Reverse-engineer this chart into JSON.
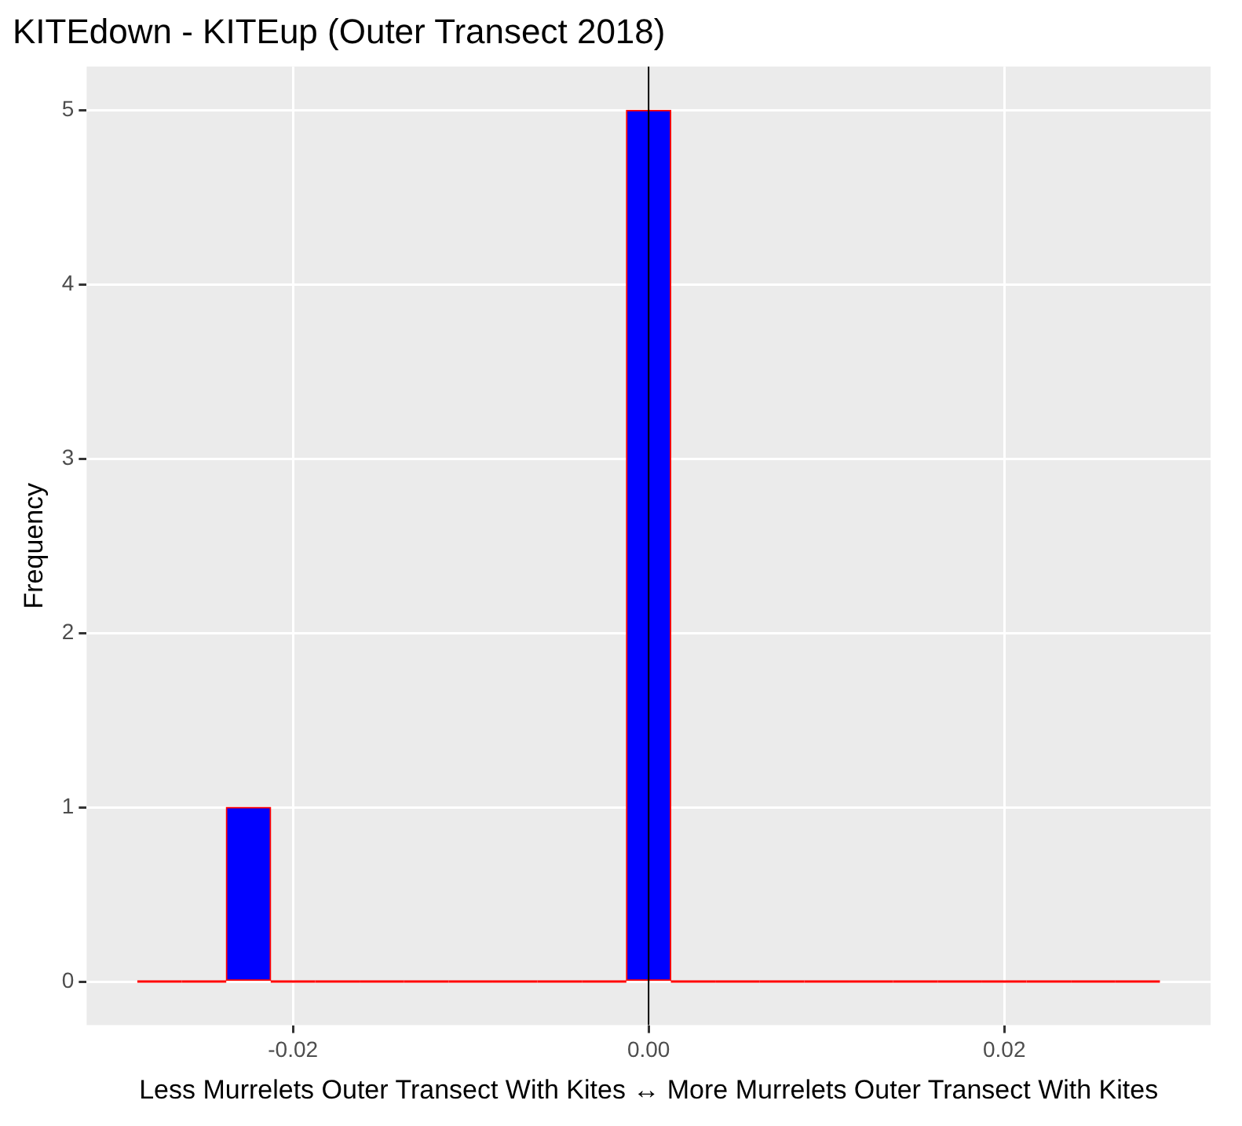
{
  "chart_data": {
    "type": "histogram",
    "title": "KITEdown - KITEup (Outer Transect 2018)",
    "xlabel": "Less Murrelets Outer Transect With Kites ↔ More Murrelets Outer Transect With Kites",
    "ylabel": "Frequency",
    "bins": [
      -0.02875,
      -0.02625,
      -0.02375,
      -0.02125,
      -0.01875,
      -0.01625,
      -0.01375,
      -0.01125,
      -0.00875,
      -0.00625,
      -0.00375,
      -0.00125,
      0.00125,
      0.00375,
      0.00625,
      0.00875,
      0.01125,
      0.01375,
      0.01625,
      0.01875,
      0.02125,
      0.02375,
      0.02625,
      0.02875
    ],
    "values": [
      0,
      0,
      1,
      0,
      0,
      0,
      0,
      0,
      0,
      0,
      0,
      5,
      0,
      0,
      0,
      0,
      0,
      0,
      0,
      0,
      0,
      0,
      0
    ],
    "color": "#0000ff",
    "xlim": [
      -0.0316,
      0.0316
    ],
    "xticks": [
      {
        "value": -0.02,
        "label": "-0.02"
      },
      {
        "value": 0,
        "label": "0.00"
      },
      {
        "value": 0.02,
        "label": "0.02"
      }
    ],
    "ylim": [
      -0.25,
      5.25
    ],
    "yticks": [
      0,
      1,
      2,
      3,
      4,
      5
    ],
    "ref_lines": [
      {
        "axis": "x",
        "value": 0,
        "color": "#000000"
      }
    ],
    "grid": true,
    "legend": false
  }
}
